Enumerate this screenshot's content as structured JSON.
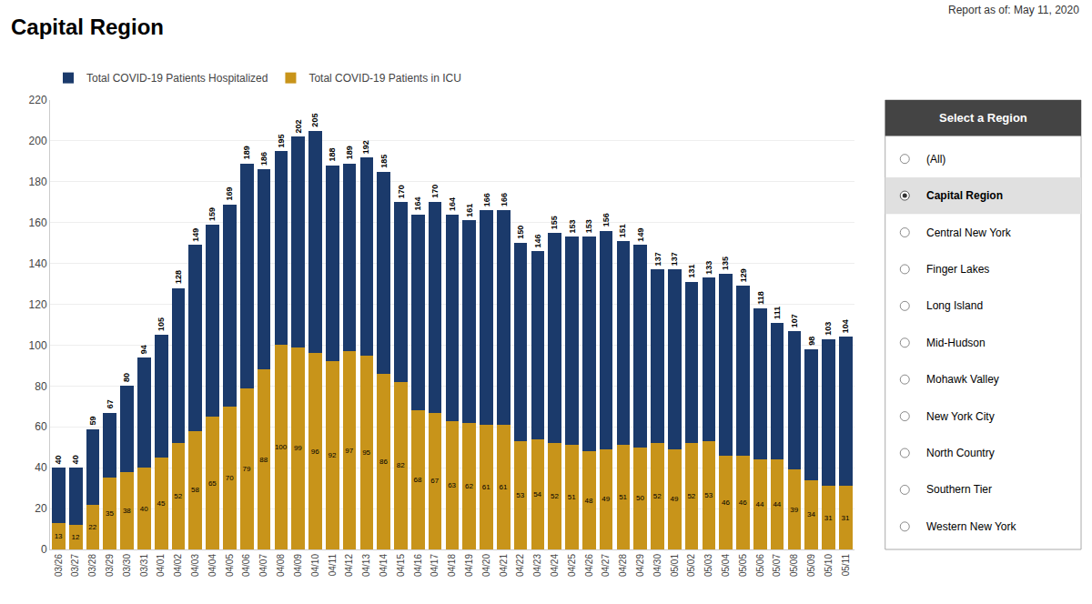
{
  "chart_data": {
    "type": "bar",
    "title": "Capital Region",
    "subtitle": "Report as of: May 11, 2020",
    "categories": [
      "03/26",
      "03/27",
      "03/28",
      "03/29",
      "03/30",
      "03/31",
      "04/01",
      "04/02",
      "04/03",
      "04/04",
      "04/05",
      "04/06",
      "04/07",
      "04/08",
      "04/09",
      "04/10",
      "04/11",
      "04/12",
      "04/13",
      "04/14",
      "04/15",
      "04/16",
      "04/17",
      "04/18",
      "04/19",
      "04/20",
      "04/21",
      "04/22",
      "04/23",
      "04/24",
      "04/25",
      "04/26",
      "04/27",
      "04/28",
      "04/29",
      "04/30",
      "05/01",
      "05/02",
      "05/03",
      "05/04",
      "05/05",
      "05/06",
      "05/07",
      "05/08",
      "05/09",
      "05/10",
      "05/11"
    ],
    "series": [
      {
        "name": "Total COVID-19 Patients in ICU",
        "color": "#c8941a",
        "data_labels": true,
        "values": [
          13,
          12,
          22,
          35,
          38,
          40,
          45,
          52,
          58,
          65,
          70,
          79,
          88,
          100,
          99,
          96,
          92,
          97,
          95,
          86,
          82,
          68,
          67,
          63,
          62,
          61,
          61,
          53,
          54,
          52,
          51,
          48,
          49,
          51,
          50,
          52,
          49,
          52,
          53,
          46,
          46,
          44,
          44,
          39,
          34,
          31,
          31
        ]
      },
      {
        "name": "Total COVID-19 Patients Hospitalized",
        "color": "#1b3a6b",
        "values": [
          27,
          28,
          37,
          32,
          42,
          54,
          60,
          76,
          91,
          94,
          99,
          110,
          98,
          95,
          103,
          109,
          96,
          92,
          97,
          99,
          88,
          96,
          103,
          101,
          99,
          105,
          105,
          97,
          92,
          103,
          102,
          105,
          107,
          100,
          99,
          85,
          88,
          79,
          80,
          89,
          83,
          74,
          67,
          68,
          64,
          72,
          73
        ]
      }
    ],
    "totals": [
      40,
      40,
      59,
      67,
      80,
      94,
      105,
      128,
      149,
      159,
      169,
      189,
      186,
      195,
      202,
      205,
      188,
      189,
      192,
      185,
      170,
      164,
      170,
      164,
      161,
      166,
      166,
      150,
      146,
      155,
      153,
      153,
      156,
      151,
      149,
      137,
      137,
      131,
      133,
      135,
      129,
      118,
      111,
      107,
      98,
      103,
      104
    ],
    "stacked": true,
    "ylim": [
      0,
      220
    ],
    "yticks": [
      0,
      20,
      40,
      60,
      80,
      100,
      120,
      140,
      160,
      180,
      200,
      220
    ],
    "grid": true,
    "annotations": [
      "Select a Region",
      "(All)",
      "Capital Region",
      "Central New York",
      "Finger Lakes",
      "Long Island",
      "Mid-Hudson",
      "Mohawk Valley",
      "New York City",
      "North Country",
      "Southern Tier",
      "Western New York"
    ]
  }
}
